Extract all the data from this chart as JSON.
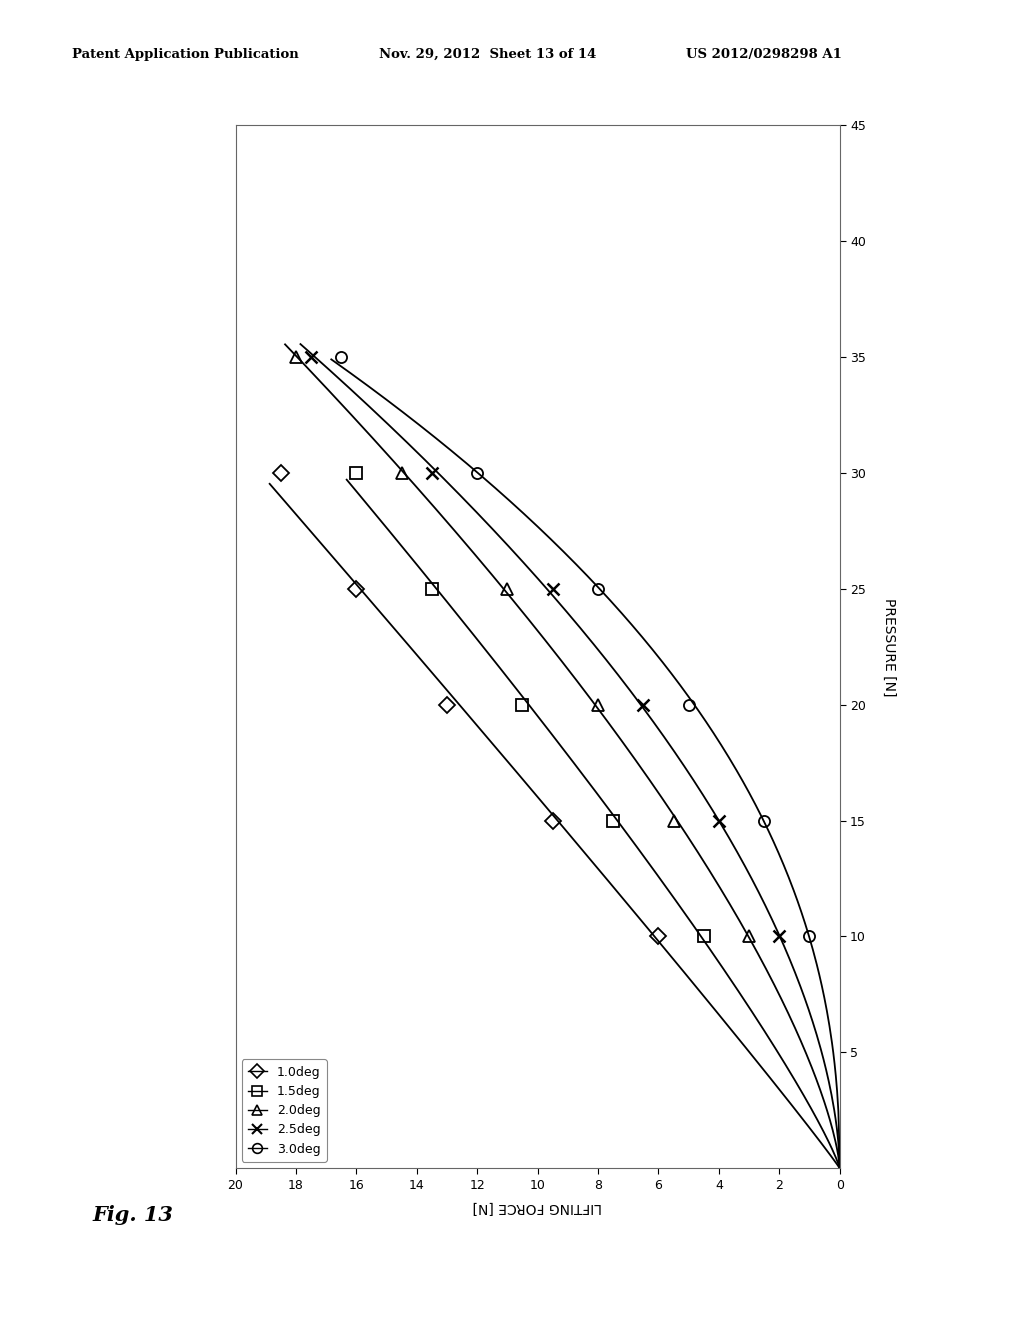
{
  "header_left": "Patent Application Publication",
  "header_mid": "Nov. 29, 2012  Sheet 13 of 14",
  "header_right": "US 2012/0298298 A1",
  "fig_label": "Fig. 13",
  "xlabel": "LIFTING FORCE [N]",
  "ylabel": "PRESSURE [N]",
  "xlim_reversed": [
    20,
    0
  ],
  "ylim": [
    0,
    45
  ],
  "xticks": [
    0,
    2,
    4,
    6,
    8,
    10,
    12,
    14,
    16,
    18,
    20
  ],
  "yticks": [
    5,
    10,
    15,
    20,
    25,
    30,
    35,
    40,
    45
  ],
  "series": [
    {
      "label": "1.0deg",
      "marker": "D",
      "lf": [
        0,
        6.0,
        9.5,
        13.0,
        16.0,
        18.5
      ],
      "p": [
        0,
        10,
        15,
        20,
        25,
        30
      ]
    },
    {
      "label": "1.5deg",
      "marker": "s",
      "lf": [
        0,
        4.5,
        7.5,
        10.5,
        13.5,
        16.0
      ],
      "p": [
        0,
        10,
        15,
        20,
        25,
        30
      ]
    },
    {
      "label": "2.0deg",
      "marker": "^",
      "lf": [
        0,
        3.0,
        5.5,
        8.0,
        11.0,
        14.5,
        18.0
      ],
      "p": [
        0,
        10,
        15,
        20,
        25,
        30,
        35
      ]
    },
    {
      "label": "2.5deg",
      "marker": "x",
      "lf": [
        0,
        2.0,
        4.0,
        6.5,
        9.5,
        13.5,
        17.5
      ],
      "p": [
        0,
        10,
        15,
        20,
        25,
        30,
        35
      ]
    },
    {
      "label": "3.0deg",
      "marker": "o",
      "lf": [
        0,
        1.0,
        2.5,
        5.0,
        8.0,
        12.0,
        16.5
      ],
      "p": [
        0,
        10,
        15,
        20,
        25,
        30,
        35
      ]
    }
  ],
  "background_color": "#ffffff",
  "line_color": "#000000",
  "marker_size": 8,
  "line_width": 1.3,
  "legend_labels_order": [
    "1.0deg",
    "1.5deg",
    "2.0deg",
    "2.5deg",
    "3.0deg"
  ],
  "legend_markers": [
    "D",
    "s",
    "^",
    "x",
    "o"
  ]
}
